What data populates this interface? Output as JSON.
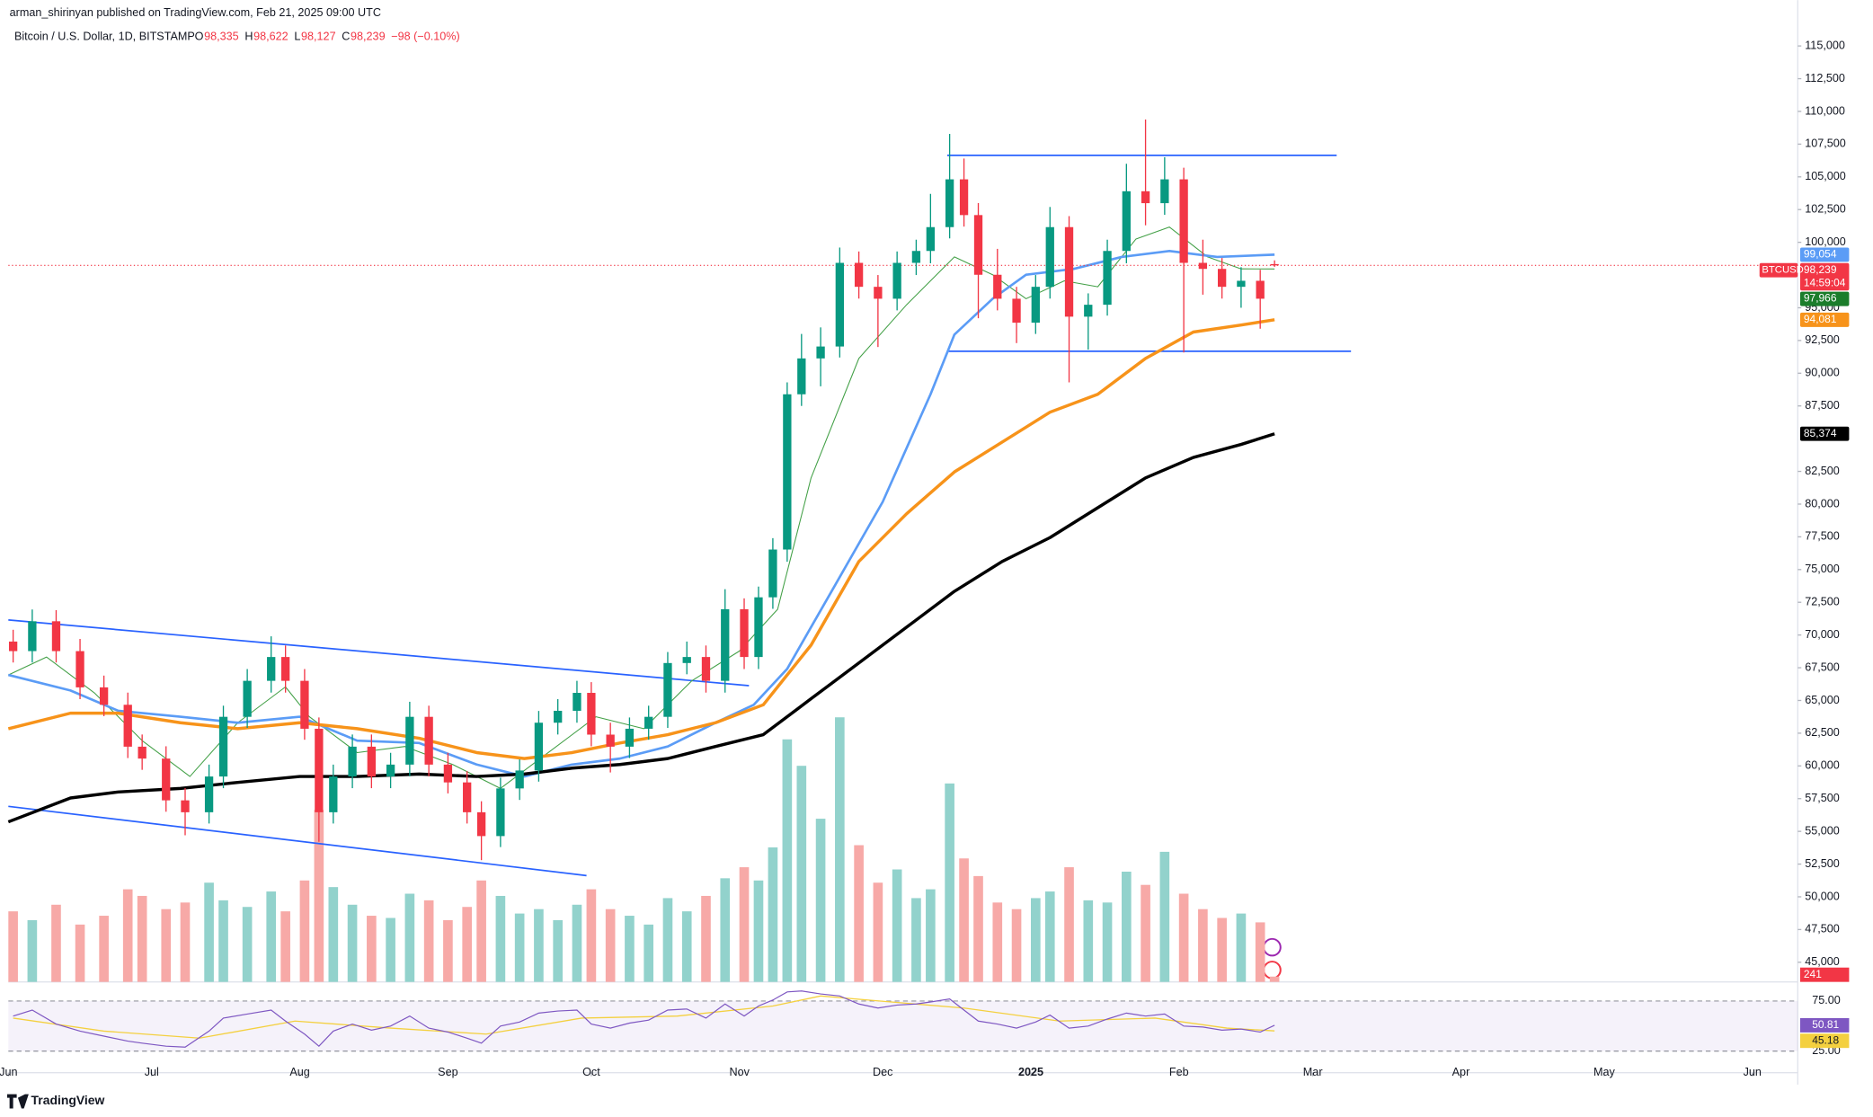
{
  "header": {
    "author_line": "arman_shirinyan published on TradingView.com, Feb 21, 2025 09:00 UTC",
    "symbol": "Bitcoin / U.S. Dollar, 1D, BITSTAMP",
    "ohlc": [
      {
        "key": "O",
        "text": "98,335"
      },
      {
        "key": "H",
        "text": "98,622"
      },
      {
        "key": "L",
        "text": "98,127"
      },
      {
        "key": "C",
        "text": "98,239"
      }
    ],
    "change": "−98 (−0.10%)"
  },
  "footer": {
    "brand": "TradingView"
  },
  "chart_data": {
    "type": "candlestick",
    "xlim": [
      0,
      374.5
    ],
    "xticks": [
      {
        "value": 0,
        "label": "Jun"
      },
      {
        "value": 30,
        "label": "Jul"
      },
      {
        "value": 61,
        "label": "Aug"
      },
      {
        "value": 92,
        "label": "Sep"
      },
      {
        "value": 122,
        "label": "Oct"
      },
      {
        "value": 153,
        "label": "Nov"
      },
      {
        "value": 183,
        "label": "Dec"
      },
      {
        "value": 214,
        "label": "2025"
      },
      {
        "value": 245,
        "label": "Feb"
      },
      {
        "value": 273,
        "label": "Mar"
      },
      {
        "value": 304,
        "label": "Apr"
      },
      {
        "value": 334,
        "label": "May"
      },
      {
        "value": 365,
        "label": "Jun"
      }
    ],
    "ylim": [
      43500,
      118500
    ],
    "yticks": [
      {
        "value": 45000,
        "label": "45,000"
      },
      {
        "value": 47500,
        "label": "47,500"
      },
      {
        "value": 50000,
        "label": "50,000"
      },
      {
        "value": 52500,
        "label": "52,500"
      },
      {
        "value": 55000,
        "label": "55,000"
      },
      {
        "value": 57500,
        "label": "57,500"
      },
      {
        "value": 60000,
        "label": "60,000"
      },
      {
        "value": 62500,
        "label": "62,500"
      },
      {
        "value": 65000,
        "label": "65,000"
      },
      {
        "value": 67500,
        "label": "67,500"
      },
      {
        "value": 70000,
        "label": "70,000"
      },
      {
        "value": 72500,
        "label": "72,500"
      },
      {
        "value": 75000,
        "label": "75,000"
      },
      {
        "value": 77500,
        "label": "77,500"
      },
      {
        "value": 80000,
        "label": "80,000"
      },
      {
        "value": 82500,
        "label": "82,500"
      },
      {
        "value": 87500,
        "label": "87,500"
      },
      {
        "value": 90000,
        "label": "90,000"
      },
      {
        "value": 92500,
        "label": "92,500"
      },
      {
        "value": 95000,
        "label": "95,000"
      },
      {
        "value": 100000,
        "label": "100,000"
      },
      {
        "value": 102500,
        "label": "102,500"
      },
      {
        "value": 105000,
        "label": "105,000"
      },
      {
        "value": 107500,
        "label": "107,500"
      },
      {
        "value": 110000,
        "label": "110,000"
      },
      {
        "value": 112500,
        "label": "112,500"
      },
      {
        "value": 115000,
        "label": "115,000"
      }
    ],
    "grid": false,
    "up_color": "#089981",
    "down_color": "#f23645",
    "up_volume_color": "#92d2cc",
    "down_volume_color": "#f7a9a7",
    "candles": {
      "days": [
        1,
        5,
        10,
        15,
        20,
        25,
        28,
        33,
        37,
        42,
        45,
        50,
        55,
        58,
        62,
        65,
        68,
        72,
        76,
        80,
        84,
        88,
        92,
        96,
        99,
        103,
        107,
        111,
        115,
        119,
        122,
        126,
        130,
        134,
        138,
        142,
        146,
        150,
        154,
        157,
        160,
        163,
        166,
        170,
        174,
        178,
        182,
        186,
        190,
        193,
        197,
        200,
        203,
        207,
        211,
        215,
        218,
        222,
        226,
        230,
        234,
        238,
        242,
        246,
        250,
        254,
        258,
        262,
        265
      ],
      "open": [
        69500,
        68770,
        71050,
        68770,
        66000,
        64670,
        61470,
        60560,
        57370,
        56460,
        59190,
        63750,
        66500,
        68320,
        66500,
        62840,
        56460,
        59190,
        61470,
        59190,
        60100,
        63750,
        60100,
        58740,
        56460,
        54640,
        58280,
        59650,
        63300,
        64210,
        65580,
        62390,
        61470,
        62840,
        63750,
        67860,
        68320,
        66500,
        71970,
        68320,
        72880,
        76530,
        88390,
        91130,
        92040,
        98430,
        96600,
        95690,
        98430,
        99340,
        101160,
        104810,
        102080,
        97520,
        95690,
        93860,
        96600,
        101160,
        94320,
        95230,
        99340,
        103900,
        102990,
        104810,
        98430,
        97970,
        96600,
        97060,
        98335
      ],
      "high": [
        70400,
        71950,
        71900,
        69700,
        66900,
        65600,
        62400,
        61500,
        58300,
        60100,
        64600,
        67400,
        69900,
        69200,
        67400,
        63700,
        60100,
        62400,
        62400,
        61000,
        64900,
        64600,
        61000,
        59600,
        57300,
        59100,
        60500,
        64200,
        65100,
        66500,
        66400,
        63300,
        63700,
        64600,
        68700,
        69500,
        69200,
        73500,
        72800,
        73700,
        77400,
        89300,
        93000,
        93500,
        99600,
        99300,
        97500,
        99300,
        100200,
        103700,
        108280,
        106400,
        103000,
        99500,
        96600,
        97500,
        102700,
        102000,
        96100,
        100200,
        106000,
        109380,
        106500,
        105700,
        100200,
        98800,
        98100,
        97900,
        98622
      ],
      "low": [
        67900,
        67900,
        67900,
        65100,
        63800,
        60600,
        59700,
        56500,
        54700,
        55600,
        58300,
        62900,
        65600,
        65600,
        62000,
        54200,
        55600,
        58300,
        58300,
        58300,
        59200,
        59200,
        57900,
        55600,
        52800,
        53800,
        57400,
        58800,
        62400,
        63300,
        61500,
        59500,
        60600,
        62000,
        62900,
        67000,
        65600,
        65600,
        67400,
        67400,
        72000,
        75600,
        87500,
        89000,
        91200,
        95700,
        92000,
        94800,
        97500,
        98400,
        100300,
        101200,
        94200,
        94800,
        92300,
        93000,
        95700,
        89300,
        91800,
        94400,
        98400,
        101300,
        102100,
        91580,
        96000,
        95700,
        95000,
        93400,
        98127
      ],
      "close": [
        68770,
        71050,
        68770,
        66000,
        64670,
        61470,
        60560,
        57370,
        56460,
        59190,
        63750,
        66500,
        68320,
        66500,
        62840,
        56460,
        59190,
        61470,
        59190,
        60100,
        63750,
        60100,
        58740,
        56460,
        54640,
        58280,
        59650,
        63300,
        64210,
        65580,
        62390,
        61470,
        62840,
        63750,
        67860,
        68320,
        66500,
        71970,
        68320,
        72880,
        76530,
        88390,
        91130,
        92040,
        98430,
        96600,
        95690,
        98430,
        99340,
        101160,
        104810,
        102080,
        97520,
        95690,
        93860,
        96600,
        101160,
        94320,
        95230,
        99340,
        103900,
        102990,
        104810,
        98430,
        97970,
        96600,
        97060,
        95690,
        98239
      ],
      "volume": [
        3200,
        2800,
        3500,
        2600,
        3000,
        4200,
        3900,
        3300,
        3600,
        4500,
        3700,
        3400,
        4100,
        3200,
        4600,
        7800,
        4300,
        3500,
        3000,
        2900,
        4000,
        3700,
        2800,
        3400,
        4600,
        3900,
        3100,
        3300,
        2800,
        3500,
        4200,
        3300,
        3000,
        2600,
        3800,
        3200,
        3900,
        4700,
        5200,
        4600,
        6100,
        11000,
        9800,
        7400,
        12000,
        6200,
        4500,
        5100,
        3800,
        4200,
        9000,
        5600,
        4800,
        3600,
        3300,
        3800,
        4100,
        5200,
        3700,
        3600,
        5000,
        4400,
        5900,
        4000,
        3300,
        2900,
        3100,
        2700,
        241
      ],
      "symbol_tag": "BTCUSD",
      "last_tag": "98,239",
      "countdown": "14:59:04",
      "volume_tag": "241"
    },
    "volume_ylim": [
      0,
      13000
    ],
    "moving_averages": [
      {
        "color": "#43a047",
        "width": 0.8,
        "tag": "97,966",
        "tag_color": "#1b7d2b",
        "days": [
          0,
          8,
          18,
          28,
          38,
          48,
          58,
          63,
          73,
          83,
          93,
          103,
          113,
          123,
          133,
          143,
          153,
          161,
          168,
          178,
          188,
          198,
          206,
          213,
          221,
          228,
          236,
          243,
          251,
          258,
          265
        ],
        "values": [
          66950,
          68320,
          65580,
          61930,
          59190,
          63300,
          66040,
          63760,
          61020,
          61480,
          60110,
          58280,
          61020,
          63760,
          62840,
          66490,
          68770,
          71970,
          82000,
          91130,
          95230,
          98880,
          97520,
          95690,
          97060,
          96600,
          100250,
          101160,
          98880,
          97970,
          97966
        ]
      },
      {
        "color": "#5b9cf6",
        "width": 2,
        "tag": "99,054",
        "tag_color": "#5b9cf6",
        "days": [
          0,
          13,
          23,
          36,
          48,
          61,
          73,
          86,
          98,
          108,
          118,
          128,
          138,
          148,
          156,
          163,
          173,
          183,
          193,
          198,
          206,
          213,
          223,
          233,
          243,
          253,
          265
        ],
        "values": [
          66950,
          65760,
          64210,
          63760,
          63300,
          63760,
          61930,
          61750,
          60110,
          59190,
          60110,
          60560,
          61480,
          63300,
          64670,
          67410,
          73790,
          80180,
          88390,
          92950,
          95690,
          97520,
          97970,
          98880,
          99340,
          98880,
          99054
        ]
      },
      {
        "color": "#f7931a",
        "width": 2.6,
        "tag": "94,081",
        "tag_color": "#f7931a",
        "days": [
          0,
          13,
          23,
          36,
          48,
          61,
          73,
          86,
          98,
          108,
          118,
          128,
          138,
          148,
          158,
          168,
          178,
          188,
          198,
          208,
          218,
          228,
          238,
          248,
          258,
          265
        ],
        "values": [
          62840,
          64030,
          64030,
          63300,
          62840,
          63300,
          62840,
          62110,
          61020,
          60560,
          61020,
          61750,
          62390,
          63300,
          64670,
          69230,
          75620,
          79270,
          82460,
          84740,
          87020,
          88390,
          91130,
          93140,
          93680,
          94081
        ]
      },
      {
        "color": "#000000",
        "width": 2.6,
        "tag": "85,374",
        "tag_color": "#000000",
        "days": [
          0,
          13,
          23,
          36,
          48,
          61,
          73,
          86,
          98,
          108,
          118,
          128,
          138,
          148,
          158,
          168,
          178,
          188,
          198,
          208,
          218,
          228,
          238,
          248,
          258,
          265
        ],
        "values": [
          55730,
          57550,
          58010,
          58280,
          58740,
          59190,
          59190,
          59380,
          59190,
          59380,
          59830,
          60110,
          60560,
          61480,
          62390,
          65130,
          67860,
          70600,
          73340,
          75620,
          77440,
          79720,
          82000,
          83560,
          84560,
          85374
        ]
      }
    ],
    "trendlines": [
      {
        "color": "#2962ff",
        "x": [
          0,
          155
        ],
        "y": [
          71150,
          66130
        ]
      },
      {
        "color": "#2962ff",
        "x": [
          0,
          121
        ],
        "y": [
          56910,
          51620
        ]
      },
      {
        "color": "#2962ff",
        "x": [
          196.5,
          278
        ],
        "y": [
          106640,
          106640
        ]
      },
      {
        "color": "#2962ff",
        "x": [
          196.5,
          281
        ],
        "y": [
          91680,
          91680
        ]
      }
    ],
    "rsi": {
      "ylim": [
        15,
        85
      ],
      "yticks": [
        {
          "value": 25,
          "label": "25.00"
        },
        {
          "value": 75,
          "label": "75.00"
        }
      ],
      "color": "#7e57c2",
      "ma_color": "#f4d03f",
      "values": [
        60,
        66,
        52,
        45,
        40,
        35,
        33,
        30,
        29,
        45,
        58,
        62,
        66,
        55,
        42,
        30,
        45,
        52,
        46,
        50,
        60,
        48,
        44,
        38,
        33,
        50,
        54,
        63,
        65,
        66,
        52,
        48,
        53,
        56,
        66,
        67,
        58,
        72,
        60,
        70,
        76,
        84,
        85,
        82,
        80,
        72,
        68,
        71,
        72,
        74,
        77,
        66,
        55,
        52,
        48,
        54,
        61,
        48,
        50,
        57,
        63,
        60,
        62,
        50,
        49,
        46,
        47,
        44,
        50.81
      ],
      "tag": "50.81",
      "ma_days": [
        1,
        20,
        40,
        60,
        80,
        100,
        120,
        140,
        160,
        170,
        180,
        200,
        220,
        240,
        255,
        265
      ],
      "ma_values": [
        58,
        45,
        38,
        55,
        48,
        42,
        58,
        60,
        70,
        80,
        76,
        68,
        55,
        58,
        48,
        45.18
      ],
      "ma_tag": "45.18"
    }
  }
}
